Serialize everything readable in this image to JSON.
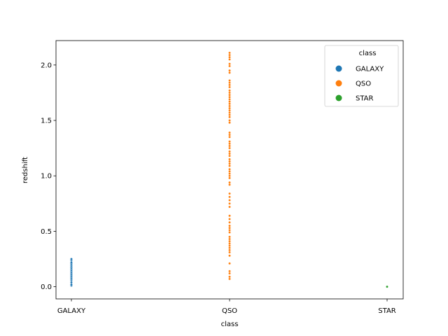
{
  "chart_data": {
    "type": "scatter",
    "xlabel": "class",
    "ylabel": "redshift",
    "categories": [
      "GALAXY",
      "QSO",
      "STAR"
    ],
    "ylim": [
      -0.11,
      2.22
    ],
    "yticks": [
      "0.0",
      "0.5",
      "1.0",
      "1.5",
      "2.0"
    ],
    "legend": {
      "title": "class",
      "placement": "top-right"
    },
    "series": [
      {
        "name": "GALAXY",
        "color": "#1f77b4",
        "category": "GALAXY",
        "values": [
          0.01,
          0.02,
          0.04,
          0.06,
          0.07,
          0.08,
          0.09,
          0.1,
          0.11,
          0.12,
          0.13,
          0.14,
          0.15,
          0.16,
          0.17,
          0.18,
          0.19,
          0.2,
          0.21,
          0.22,
          0.24,
          0.25
        ]
      },
      {
        "name": "QSO",
        "color": "#ff7f0e",
        "category": "QSO",
        "values": [
          0.07,
          0.09,
          0.12,
          0.14,
          0.21,
          0.28,
          0.31,
          0.33,
          0.35,
          0.37,
          0.39,
          0.41,
          0.43,
          0.45,
          0.49,
          0.51,
          0.53,
          0.55,
          0.58,
          0.61,
          0.64,
          0.72,
          0.75,
          0.78,
          0.81,
          0.84,
          0.92,
          0.94,
          0.98,
          1.0,
          1.02,
          1.04,
          1.06,
          1.09,
          1.11,
          1.13,
          1.15,
          1.18,
          1.2,
          1.22,
          1.25,
          1.27,
          1.29,
          1.31,
          1.35,
          1.37,
          1.39,
          1.48,
          1.5,
          1.53,
          1.55,
          1.57,
          1.59,
          1.61,
          1.63,
          1.65,
          1.67,
          1.69,
          1.71,
          1.73,
          1.75,
          1.77,
          1.8,
          1.82,
          1.84,
          1.86,
          1.93,
          1.95,
          1.99,
          2.01,
          2.05,
          2.07,
          2.09,
          2.11
        ]
      },
      {
        "name": "STAR",
        "color": "#2ca02c",
        "category": "STAR",
        "values": [
          0.0
        ]
      }
    ]
  }
}
